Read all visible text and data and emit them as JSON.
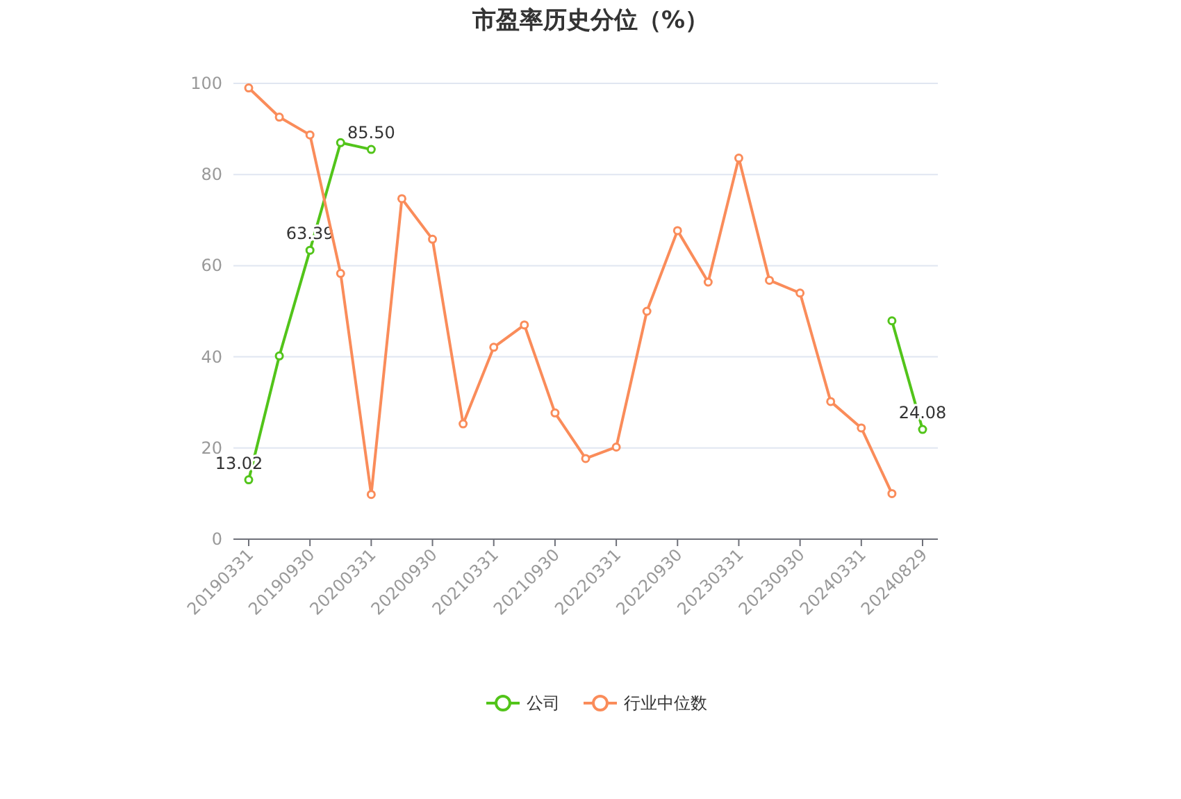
{
  "chart_data": {
    "type": "line",
    "title": "市盈率历史分位（%）",
    "categories": [
      "20190331",
      null,
      "20190930",
      null,
      "20200331",
      null,
      "20200930",
      null,
      "20210331",
      null,
      "20210930",
      null,
      "20220331",
      null,
      "20220930",
      null,
      "20230331",
      null,
      "20230930",
      null,
      "20240331",
      null,
      "20240829"
    ],
    "series": [
      {
        "name": "公司",
        "color": "#52c41a",
        "values": [
          13.02,
          40.2,
          63.39,
          87,
          85.5,
          null,
          null,
          null,
          null,
          null,
          null,
          null,
          null,
          null,
          null,
          null,
          null,
          null,
          null,
          null,
          null,
          47.9,
          24.08
        ],
        "value_labels": [
          "13.02",
          null,
          "63.39",
          null,
          "85.50",
          null,
          null,
          null,
          null,
          null,
          null,
          null,
          null,
          null,
          null,
          null,
          null,
          null,
          null,
          null,
          null,
          null,
          "24.08"
        ]
      },
      {
        "name": "行业中位数",
        "color": "#fa8c5a",
        "values": [
          99,
          92.6,
          88.7,
          58.3,
          9.8,
          74.7,
          65.8,
          25.3,
          42.1,
          47,
          27.7,
          17.7,
          20.2,
          50,
          67.7,
          56.4,
          83.6,
          56.8,
          54,
          30.2,
          24.4,
          10,
          null
        ]
      }
    ],
    "ylim": [
      0,
      100
    ],
    "yticks": [
      0,
      20,
      40,
      60,
      80,
      100
    ],
    "grid": "y",
    "legend": "bottom",
    "marker": "circle",
    "line_style": "solid"
  }
}
